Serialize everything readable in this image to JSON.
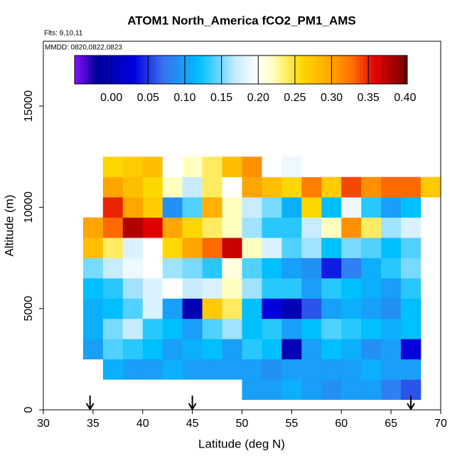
{
  "chart_data": {
    "type": "heatmap",
    "title": "ATOM1 North_America fCO2_PM1_AMS",
    "notes": [
      "Flts: 9,10,11",
      "MMDD: 0820,0822,0823"
    ],
    "x_label": "Latitude (deg N)",
    "y_label": "Altitude (m)",
    "xlim": [
      30,
      70
    ],
    "ylim": [
      0,
      18200
    ],
    "xticks": [
      30,
      35,
      40,
      45,
      50,
      55,
      60,
      65,
      70
    ],
    "yticks": [
      0,
      5000,
      10000,
      15000
    ],
    "x_edges": [
      34,
      36,
      38,
      40,
      42,
      44,
      46,
      48,
      50,
      52,
      54,
      56,
      58,
      60,
      62,
      64,
      66,
      68,
      70
    ],
    "y_edges": [
      500,
      1500,
      2500,
      3500,
      4500,
      5500,
      6500,
      7500,
      8500,
      9500,
      10500,
      11500,
      12500
    ],
    "values": [
      [
        null,
        null,
        null,
        null,
        null,
        null,
        null,
        null,
        0.1,
        0.1,
        0.11,
        0.1,
        0.09,
        0.1,
        0.1,
        0.08,
        0.06,
        null
      ],
      [
        null,
        0.11,
        0.1,
        0.1,
        0.11,
        0.1,
        0.1,
        0.1,
        0.1,
        0.09,
        0.1,
        0.1,
        0.1,
        0.1,
        0.11,
        0.1,
        0.1,
        null
      ],
      [
        0.1,
        0.14,
        0.13,
        0.12,
        0.1,
        0.11,
        0.12,
        0.1,
        0.13,
        0.12,
        0.0,
        0.1,
        0.12,
        0.11,
        0.09,
        0.1,
        0.03,
        null
      ],
      [
        0.11,
        0.15,
        0.17,
        0.13,
        0.12,
        0.1,
        0.14,
        0.16,
        0.12,
        0.13,
        0.1,
        0.12,
        0.14,
        0.13,
        0.12,
        0.11,
        0.12,
        null
      ],
      [
        0.11,
        0.12,
        0.14,
        0.18,
        0.1,
        0.0,
        0.27,
        0.24,
        0.12,
        0.03,
        0.0,
        0.06,
        0.1,
        0.11,
        0.1,
        0.09,
        0.12,
        null
      ],
      [
        0.12,
        0.13,
        0.16,
        0.18,
        0.2,
        0.17,
        0.18,
        0.22,
        0.16,
        0.13,
        0.13,
        0.1,
        0.13,
        0.12,
        0.11,
        0.1,
        0.13,
        null
      ],
      [
        0.15,
        0.17,
        0.19,
        0.2,
        0.16,
        0.15,
        0.13,
        0.21,
        0.14,
        0.12,
        0.1,
        0.09,
        0.04,
        0.08,
        0.11,
        0.13,
        0.15,
        null
      ],
      [
        0.28,
        0.24,
        0.18,
        0.2,
        0.26,
        0.3,
        0.33,
        0.37,
        0.22,
        0.18,
        0.14,
        0.16,
        0.12,
        0.15,
        0.14,
        0.12,
        0.14,
        null
      ],
      [
        0.3,
        0.33,
        0.38,
        0.36,
        0.3,
        0.26,
        0.24,
        0.22,
        0.16,
        0.13,
        0.13,
        0.17,
        0.22,
        0.31,
        0.24,
        0.16,
        0.18,
        null
      ],
      [
        null,
        0.35,
        0.3,
        0.27,
        0.09,
        0.14,
        0.29,
        0.22,
        0.17,
        0.15,
        0.11,
        0.26,
        0.12,
        0.19,
        0.13,
        0.1,
        0.12,
        null
      ],
      [
        null,
        0.3,
        0.28,
        0.26,
        0.22,
        0.17,
        0.24,
        0.2,
        0.3,
        0.28,
        0.26,
        0.32,
        0.27,
        0.34,
        0.31,
        0.33,
        0.33,
        0.27
      ],
      [
        null,
        0.26,
        0.27,
        0.28,
        0.2,
        0.22,
        0.24,
        0.28,
        0.31,
        0.2,
        0.19,
        0.2,
        null,
        null,
        null,
        null,
        null,
        null
      ]
    ],
    "colorbar_lim": [
      -0.05,
      0.403
    ],
    "colorbar_ticks": [
      {
        "value": 0,
        "label": "0.00"
      },
      {
        "value": 0.05,
        "label": "0.05"
      },
      {
        "value": 0.1,
        "label": "0.10"
      },
      {
        "value": 0.15,
        "label": "0.15"
      },
      {
        "value": 0.2,
        "label": "0.20"
      },
      {
        "value": 0.25,
        "label": "0.25"
      },
      {
        "value": 0.3,
        "label": "0.30"
      },
      {
        "value": 0.35,
        "label": "0.35"
      },
      {
        "value": 0.4,
        "label": "0.40"
      }
    ],
    "colorscale": [
      [
        -0.05,
        "#8a10ff"
      ],
      [
        -0.02,
        "#00009a"
      ],
      [
        0.03,
        "#0000dd"
      ],
      [
        0.07,
        "#3a70f0"
      ],
      [
        0.12,
        "#00bfff"
      ],
      [
        0.17,
        "#c8ecff"
      ],
      [
        0.2,
        "#ffffff"
      ],
      [
        0.22,
        "#ffffc0"
      ],
      [
        0.26,
        "#ffd700"
      ],
      [
        0.3,
        "#ffa500"
      ],
      [
        0.33,
        "#ff6a00"
      ],
      [
        0.36,
        "#e00000"
      ],
      [
        0.403,
        "#7a0000"
      ]
    ],
    "arrows_x": [
      34.7,
      45,
      67
    ]
  }
}
